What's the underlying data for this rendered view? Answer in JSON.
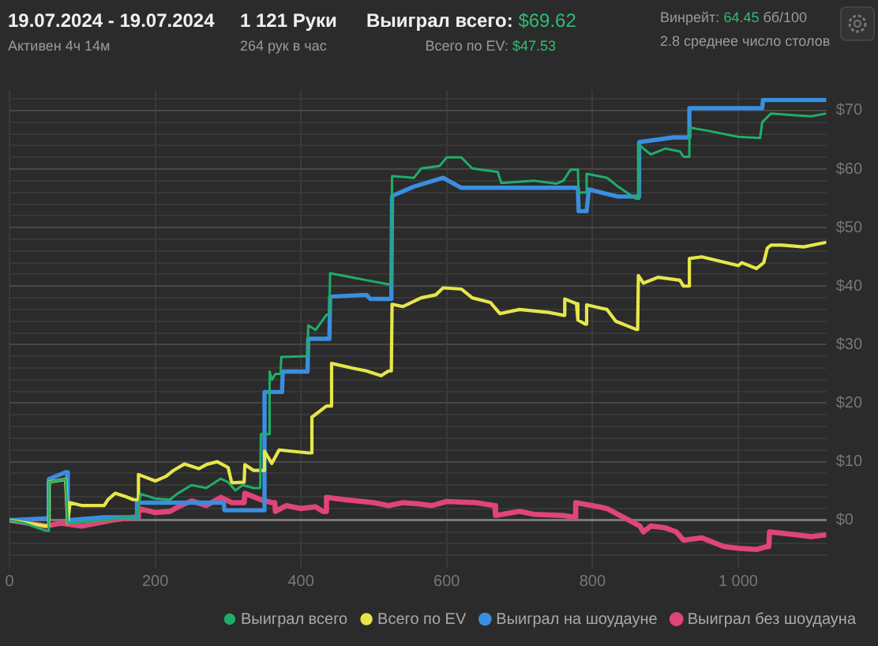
{
  "chart_data": {
    "type": "line",
    "title": "19.07.2024 - 19.07.2024",
    "subtitle": "Активен 4ч 14м",
    "annotations": [
      "1 121 Руки",
      "264 рук в час",
      "Выиграл всего:",
      "$69.62",
      "Всего по EV:",
      "$47.53",
      "Винрейт:",
      "64.45",
      "бб/100",
      "2.8 среднее число столов"
    ],
    "xlim": [
      0,
      1121
    ],
    "xticks": [
      0,
      200,
      400,
      600,
      800,
      {
        "value": 1000,
        "label": "1 000"
      }
    ],
    "ylim": [
      -8,
      73.5
    ],
    "yticks": [
      {
        "value": -6,
        "label": null
      },
      {
        "value": -4,
        "label": null
      },
      {
        "value": -2,
        "label": null
      },
      {
        "value": 0,
        "label": "$0"
      },
      {
        "value": 2,
        "label": null
      },
      {
        "value": 4,
        "label": null
      },
      {
        "value": 6,
        "label": null
      },
      {
        "value": 8,
        "label": null
      },
      {
        "value": 10,
        "label": "$10"
      },
      {
        "value": 12,
        "label": null
      },
      {
        "value": 14,
        "label": null
      },
      {
        "value": 16,
        "label": null
      },
      {
        "value": 18,
        "label": null
      },
      {
        "value": 20,
        "label": "$20"
      },
      {
        "value": 22,
        "label": null
      },
      {
        "value": 24,
        "label": null
      },
      {
        "value": 26,
        "label": null
      },
      {
        "value": 28,
        "label": null
      },
      {
        "value": 30,
        "label": "$30"
      },
      {
        "value": 32,
        "label": null
      },
      {
        "value": 34,
        "label": null
      },
      {
        "value": 36,
        "label": null
      },
      {
        "value": 38,
        "label": null
      },
      {
        "value": 40,
        "label": "$40"
      },
      {
        "value": 42,
        "label": null
      },
      {
        "value": 44,
        "label": null
      },
      {
        "value": 46,
        "label": null
      },
      {
        "value": 48,
        "label": null
      },
      {
        "value": 50,
        "label": "$50"
      },
      {
        "value": 52,
        "label": null
      },
      {
        "value": 54,
        "label": null
      },
      {
        "value": 56,
        "label": null
      },
      {
        "value": 58,
        "label": null
      },
      {
        "value": 60,
        "label": "$60"
      },
      {
        "value": 62,
        "label": null
      },
      {
        "value": 64,
        "label": null
      },
      {
        "value": 66,
        "label": null
      },
      {
        "value": 68,
        "label": null
      },
      {
        "value": 70,
        "label": "$70"
      },
      {
        "value": 72,
        "label": null
      }
    ],
    "grid": true,
    "legend": "bottom right",
    "marker": "none",
    "line_style": "solid",
    "series": [
      {
        "name": "Выиграл всего",
        "color": "#1fae6a",
        "x": [
          0,
          20,
          50,
          53,
          54,
          77,
          80,
          130,
          160,
          175,
          180,
          200,
          220,
          230,
          250,
          270,
          290,
          300,
          310,
          320,
          335,
          344,
          345,
          356,
          357,
          360,
          365,
          372,
          373,
          400,
          409,
          410,
          420,
          435,
          439,
          440,
          470,
          490,
          520,
          524,
          525,
          555,
          565,
          590,
          600,
          620,
          635,
          670,
          675,
          720,
          750,
          760,
          770,
          780,
          781,
          791,
          792,
          820,
          835,
          860,
          863,
          864,
          880,
          900,
          920,
          925,
          932,
          933,
          960,
          1000,
          1030,
          1033,
          1045,
          1100,
          1121
        ],
        "values": [
          0,
          -0.5,
          -1.8,
          -1.8,
          6.5,
          7,
          -0.5,
          0,
          0.5,
          0.5,
          4.5,
          3.7,
          3.5,
          4.5,
          6,
          5.5,
          7.1,
          6.5,
          5.1,
          6,
          5.5,
          5.5,
          14.7,
          14.7,
          25.4,
          24,
          25,
          25,
          27.9,
          28,
          28,
          33.3,
          32.5,
          35.1,
          35.1,
          42.2,
          41.5,
          41,
          40.3,
          40.3,
          58.8,
          58.5,
          60.1,
          60.5,
          62,
          62,
          60.1,
          59.5,
          57.6,
          58,
          57.5,
          58,
          59.9,
          59.9,
          56,
          56,
          59.2,
          58.5,
          57,
          54.9,
          54.9,
          64.1,
          62.5,
          63.5,
          63,
          62.1,
          62.1,
          67.1,
          66.5,
          65.5,
          65.3,
          68,
          69.5,
          69,
          69.5
        ]
      },
      {
        "name": "Всего по EV",
        "color": "#e6e64a",
        "x": [
          0,
          50,
          53,
          54,
          77,
          80,
          83,
          100,
          130,
          135,
          145,
          160,
          170,
          176,
          177,
          200,
          215,
          225,
          240,
          260,
          270,
          285,
          300,
          305,
          320,
          322,
          323,
          335,
          349,
          350,
          360,
          370,
          410,
          414,
          415,
          435,
          441,
          442,
          470,
          490,
          510,
          520,
          524,
          525,
          540,
          565,
          585,
          595,
          620,
          635,
          660,
          673,
          700,
          740,
          761,
          762,
          778,
          780,
          790,
          791,
          792,
          820,
          832,
          860,
          862,
          863,
          870,
          890,
          920,
          925,
          932,
          933,
          950,
          1000,
          1005,
          1025,
          1035,
          1040,
          1045,
          1060,
          1090,
          1121
        ],
        "values": [
          0,
          -1,
          -1,
          6.5,
          7,
          -0.5,
          3,
          2.5,
          2.5,
          3.5,
          4.6,
          4,
          3.5,
          3.5,
          7.8,
          6.7,
          7.5,
          8.5,
          9.6,
          8.8,
          9.5,
          10,
          9,
          6.4,
          6.5,
          6.5,
          9.5,
          8.5,
          8.5,
          11.8,
          9.7,
          12,
          11.5,
          11.5,
          17.6,
          19.5,
          19.5,
          26.8,
          26,
          25.5,
          24.7,
          25.5,
          25.5,
          36.9,
          36.5,
          38,
          38.5,
          39.7,
          39.5,
          38,
          37.2,
          35.3,
          36,
          35.5,
          35,
          37.8,
          37,
          34.2,
          33.5,
          33.5,
          36.8,
          36,
          34,
          32.6,
          32.6,
          41.8,
          40.5,
          41.5,
          41,
          40,
          40,
          44.7,
          45,
          43.5,
          44,
          43,
          44,
          46.5,
          47,
          47,
          46.7,
          47.5
        ]
      },
      {
        "name": "Выиграл на шоудауне",
        "color": "#3a8ee0",
        "x": [
          0,
          50,
          53,
          54,
          77,
          79,
          80,
          130,
          174,
          175,
          294,
          295,
          349,
          350,
          374,
          375,
          409,
          410,
          439,
          440,
          490,
          495,
          524,
          525,
          555,
          595,
          620,
          780,
          781,
          792,
          795,
          835,
          863,
          864,
          911,
          932,
          933,
          1033,
          1034,
          1121
        ],
        "values": [
          0,
          0.3,
          0.3,
          7,
          8.2,
          8.2,
          0,
          0.5,
          0.5,
          3,
          3,
          1.7,
          1.7,
          21.9,
          21.9,
          25.4,
          25.4,
          31,
          31,
          38.2,
          38.5,
          37.8,
          37.8,
          55.4,
          57,
          58.5,
          56.8,
          56.8,
          52.8,
          52.8,
          56.5,
          55.3,
          55.3,
          64.6,
          65.4,
          65.4,
          70.4,
          70.4,
          71.8,
          71.8
        ]
      },
      {
        "name": "Выиграл без шоудауна",
        "color": "#e0457a",
        "x": [
          0,
          50,
          70,
          100,
          120,
          140,
          170,
          176,
          177,
          200,
          220,
          235,
          250,
          270,
          290,
          305,
          322,
          323,
          345,
          360,
          364,
          365,
          380,
          400,
          420,
          430,
          434,
          435,
          460,
          500,
          520,
          540,
          560,
          580,
          600,
          640,
          666,
          667,
          700,
          720,
          760,
          776,
          777,
          800,
          820,
          835,
          850,
          865,
          870,
          880,
          900,
          915,
          925,
          950,
          960,
          980,
          1000,
          1025,
          1040,
          1042,
          1043,
          1080,
          1100,
          1121
        ],
        "values": [
          0,
          -1,
          -0.5,
          -1,
          -0.5,
          0,
          0.5,
          0.5,
          2,
          1.3,
          1.5,
          2.5,
          3.3,
          2.5,
          3.9,
          3,
          3,
          4.6,
          3.5,
          3,
          3,
          1.5,
          2.5,
          2,
          2.3,
          1.5,
          1.5,
          3.9,
          3.5,
          3,
          2.5,
          3,
          2.8,
          2.5,
          3.2,
          3,
          2.5,
          0.8,
          1.5,
          1,
          0.8,
          0.5,
          3,
          2.5,
          2,
          1,
          0,
          -1,
          -2,
          -1,
          -1.3,
          -2,
          -3.4,
          -3,
          -3.5,
          -4.5,
          -4.8,
          -5,
          -4.5,
          -4.5,
          -2,
          -2.5,
          -2.8,
          -2.5
        ]
      }
    ]
  }
}
